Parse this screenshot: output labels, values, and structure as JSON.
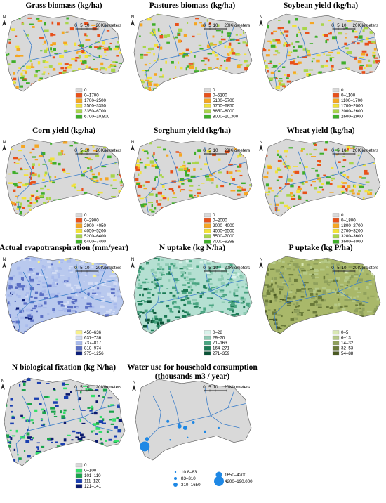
{
  "panels": [
    {
      "title": "Grass biomass (kg/ha)",
      "north": "N",
      "scale_bar": {
        "ticks": [
          "0",
          "5",
          "10",
          "20"
        ],
        "unit": "Kilometers"
      },
      "map_color": "#d9d9d9",
      "legend": [
        {
          "label": "0",
          "color": "#d9d9d9"
        },
        {
          "label": "0–1700",
          "color": "#e8501a"
        },
        {
          "label": "1700–2500",
          "color": "#f5a623"
        },
        {
          "label": "2500–3350",
          "color": "#f2e23a"
        },
        {
          "label": "3350–6700",
          "color": "#a9d54a"
        },
        {
          "label": "6700–10,800",
          "color": "#3fae2a"
        }
      ]
    },
    {
      "title": "Pastures biomass (kg/ha)",
      "north": "N",
      "scale_bar": {
        "ticks": [
          "0",
          "5",
          "10",
          "20"
        ],
        "unit": "Kilometers"
      },
      "map_color": "#d9d9d9",
      "legend": [
        {
          "label": "0",
          "color": "#d9d9d9"
        },
        {
          "label": "0–5100",
          "color": "#e8501a"
        },
        {
          "label": "5100–5700",
          "color": "#f5a623"
        },
        {
          "label": "5700–6850",
          "color": "#f2e23a"
        },
        {
          "label": "6850–8000",
          "color": "#a9d54a"
        },
        {
          "label": "8000–10,300",
          "color": "#3fae2a"
        }
      ]
    },
    {
      "title": "Soybean yield (kg/ha)",
      "north": "N",
      "scale_bar": {
        "ticks": [
          "0",
          "5",
          "10",
          "20"
        ],
        "unit": "Kilometers"
      },
      "map_color": "#d9d9d9",
      "legend": [
        {
          "label": "0",
          "color": "#d9d9d9"
        },
        {
          "label": "0–1100",
          "color": "#e8501a"
        },
        {
          "label": "1100–1700",
          "color": "#f5a623"
        },
        {
          "label": "1700–2000",
          "color": "#f2e23a"
        },
        {
          "label": "2000–2600",
          "color": "#a9d54a"
        },
        {
          "label": "2600–2900",
          "color": "#3fae2a"
        }
      ]
    },
    {
      "title": "Corn yield (kg/ha)",
      "north": "N",
      "scale_bar": {
        "ticks": [
          "0",
          "5",
          "10",
          "20"
        ],
        "unit": "Kilometers"
      },
      "map_color": "#d9d9d9",
      "legend": [
        {
          "label": "0",
          "color": "#d9d9d9"
        },
        {
          "label": "0–2900",
          "color": "#e8501a"
        },
        {
          "label": "2900–4050",
          "color": "#f5a623"
        },
        {
          "label": "4050–5200",
          "color": "#f2e23a"
        },
        {
          "label": "5200–6400",
          "color": "#a9d54a"
        },
        {
          "label": "6400–7400",
          "color": "#3fae2a"
        }
      ]
    },
    {
      "title": "Sorghum yield (kg/ha)",
      "north": "N",
      "scale_bar": {
        "ticks": [
          "0",
          "5",
          "10",
          "20"
        ],
        "unit": "Kilometers"
      },
      "map_color": "#d9d9d9",
      "legend": [
        {
          "label": "0",
          "color": "#d9d9d9"
        },
        {
          "label": "0–2000",
          "color": "#e8501a"
        },
        {
          "label": "2000–4000",
          "color": "#f5a623"
        },
        {
          "label": "4000–5500",
          "color": "#f2e23a"
        },
        {
          "label": "5500–7000",
          "color": "#a9d54a"
        },
        {
          "label": "7000–9298",
          "color": "#3fae2a"
        }
      ]
    },
    {
      "title": "Wheat yield (kg/ha)",
      "north": "N",
      "scale_bar": {
        "ticks": [
          "0",
          "5",
          "10",
          "20"
        ],
        "unit": "Kilometers"
      },
      "map_color": "#d9d9d9",
      "legend": [
        {
          "label": "0",
          "color": "#d9d9d9"
        },
        {
          "label": "0–1800",
          "color": "#e8501a"
        },
        {
          "label": "1800–2700",
          "color": "#f5a623"
        },
        {
          "label": "2700–3200",
          "color": "#f2e23a"
        },
        {
          "label": "3200–3600",
          "color": "#a9d54a"
        },
        {
          "label": "3600–4000",
          "color": "#3fae2a"
        }
      ]
    },
    {
      "title": "Actual evapotranspiration (mm/year)",
      "north": "N",
      "scale_bar": {
        "ticks": [
          "0",
          "5",
          "10",
          "20"
        ],
        "unit": "Kilometers"
      },
      "map_color": "#b9c9ee",
      "legend": [
        {
          "label": "450–636",
          "color": "#f7f08a"
        },
        {
          "label": "637–736",
          "color": "#d3ddf5"
        },
        {
          "label": "737–817",
          "color": "#a9bbec"
        },
        {
          "label": "818–974",
          "color": "#5a6fc4"
        },
        {
          "label": "975–1256",
          "color": "#0c1f7a"
        }
      ]
    },
    {
      "title": "N uptake (kg N/ha)",
      "north": "N",
      "scale_bar": {
        "ticks": [
          "0",
          "5",
          "10",
          "20"
        ],
        "unit": "Kilometers"
      },
      "map_color": "#b5e0d2",
      "legend": [
        {
          "label": "0–28",
          "color": "#d8f2ea"
        },
        {
          "label": "29–70",
          "color": "#8fcbb4"
        },
        {
          "label": "71–163",
          "color": "#4aa582"
        },
        {
          "label": "164–271",
          "color": "#1c7a55"
        },
        {
          "label": "271–359",
          "color": "#0a5236"
        }
      ]
    },
    {
      "title": "P uptake (kg P/ha)",
      "north": "N",
      "scale_bar": {
        "ticks": [
          "0",
          "5",
          "10",
          "20"
        ],
        "unit": "Kilometers"
      },
      "map_color": "#a9b86a",
      "legend": [
        {
          "label": "0–5",
          "color": "#d9e8b4"
        },
        {
          "label": "6–13",
          "color": "#b6c987"
        },
        {
          "label": "14–32",
          "color": "#8fa05c"
        },
        {
          "label": "32–53",
          "color": "#6a7a3a"
        },
        {
          "label": "54–88",
          "color": "#4b5a22"
        }
      ]
    },
    {
      "title": "N biological fixation (kg N/ha)",
      "north": "N",
      "scale_bar": {
        "ticks": [
          "0",
          "5",
          "10",
          "20"
        ],
        "unit": "Kilometers"
      },
      "map_color": "#d9d9d9",
      "legend": [
        {
          "label": "0",
          "color": "#d9d9d9"
        },
        {
          "label": "0–100",
          "color": "#34e06a"
        },
        {
          "label": "101–110",
          "color": "#19a34a"
        },
        {
          "label": "111–120",
          "color": "#1a3fb0"
        },
        {
          "label": "121–141",
          "color": "#0b1a6e"
        }
      ]
    },
    {
      "title": "Water use for household consumption",
      "subtitle": "(thousands m3 / year)",
      "north": "N",
      "scale_bar": {
        "ticks": [
          "0",
          "5",
          "10",
          "20"
        ],
        "unit": "Kilometers"
      },
      "map_color": "#d9d9d9",
      "legend": [
        {
          "label": "10.8–83",
          "color": "#1e88e5"
        },
        {
          "label": "83–310",
          "color": "#1e88e5"
        },
        {
          "label": "310–1650",
          "color": "#1e88e5"
        },
        {
          "label": "1650–4200",
          "color": "#1e88e5"
        },
        {
          "label": "4200–190,000",
          "color": "#1e88e5"
        }
      ]
    }
  ]
}
